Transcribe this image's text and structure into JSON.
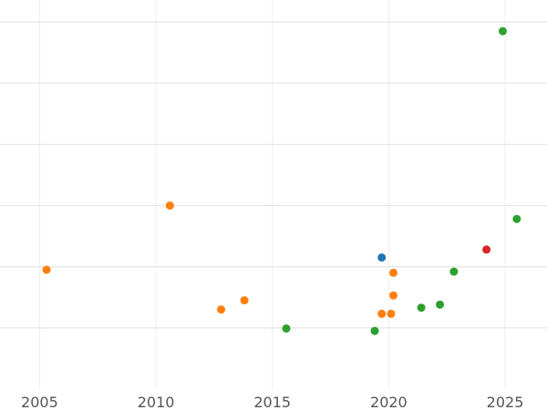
{
  "chart_data": {
    "type": "scatter",
    "title": "",
    "xlabel": "",
    "ylabel": "",
    "xlim": [
      2003.3,
      2026.8
    ],
    "ylim": [
      0,
      6.3
    ],
    "x_ticks": [
      2005,
      2010,
      2015,
      2020,
      2025
    ],
    "x_tick_labels": [
      "2005",
      "2010",
      "2015",
      "2020",
      "2025"
    ],
    "y_gridlines": [
      1,
      2,
      3,
      4,
      5,
      6
    ],
    "grid": true,
    "legend": "none",
    "colors": {
      "blue": "#1f77b4",
      "orange": "#ff7f0e",
      "green": "#2ca02c",
      "red": "#d62728"
    },
    "series": [
      {
        "color": "#1f77b4",
        "points": [
          [
            2019.7,
            2.15
          ]
        ]
      },
      {
        "color": "#ff7f0e",
        "points": [
          [
            2005.3,
            1.95
          ],
          [
            2010.6,
            3.0
          ],
          [
            2012.8,
            1.3
          ],
          [
            2013.8,
            1.45
          ],
          [
            2019.7,
            1.23
          ],
          [
            2020.1,
            1.23
          ],
          [
            2020.2,
            1.9
          ],
          [
            2020.2,
            1.53
          ]
        ]
      },
      {
        "color": "#2ca02c",
        "points": [
          [
            2015.6,
            0.99
          ],
          [
            2019.4,
            0.95
          ],
          [
            2021.4,
            1.33
          ],
          [
            2022.2,
            1.38
          ],
          [
            2022.8,
            1.92
          ],
          [
            2024.9,
            5.85
          ],
          [
            2025.5,
            2.78
          ]
        ]
      },
      {
        "color": "#d62728",
        "points": [
          [
            2024.2,
            2.28
          ]
        ]
      }
    ]
  }
}
